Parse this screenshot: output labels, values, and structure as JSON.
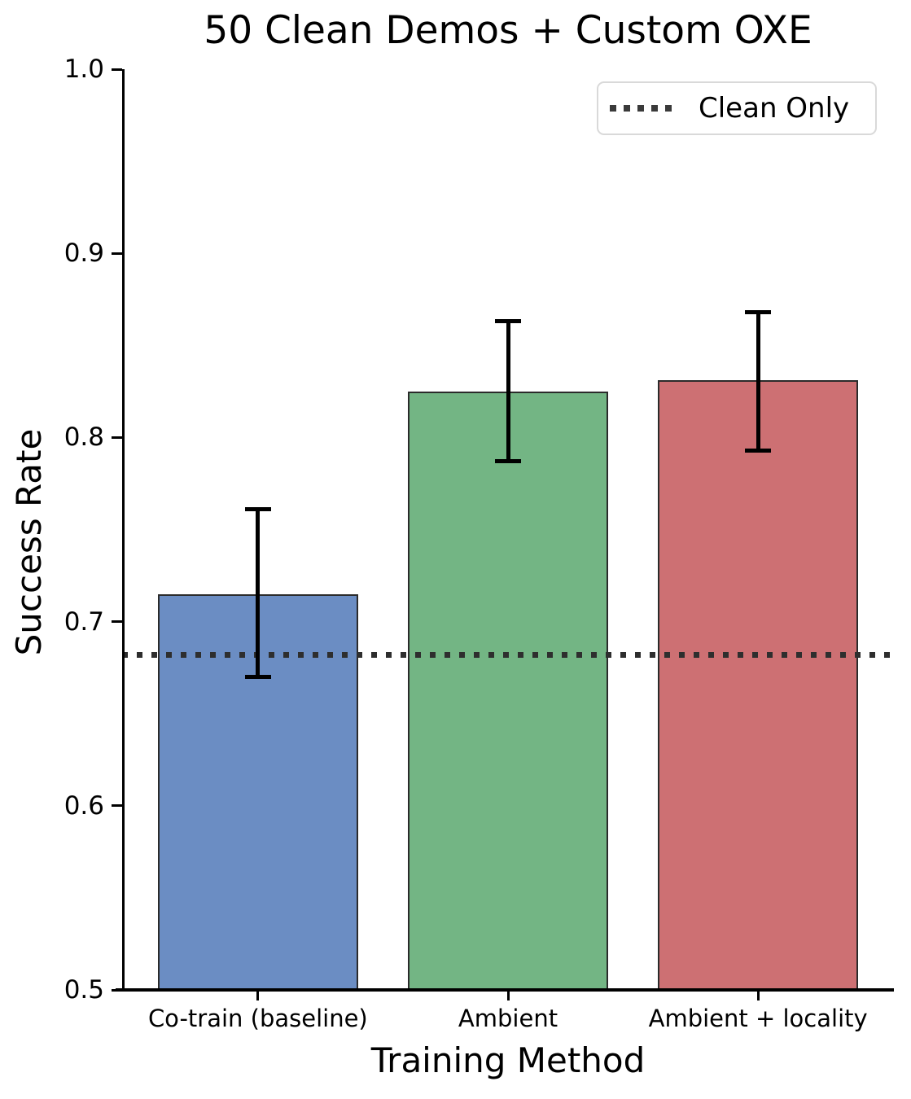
{
  "chart_data": {
    "type": "bar",
    "title": "50 Clean Demos + Custom OXE",
    "xlabel": "Training Method",
    "ylabel": "Success Rate",
    "ylim": [
      0.5,
      1.0
    ],
    "yticks": [
      0.5,
      0.6,
      0.7,
      0.8,
      0.9,
      1.0
    ],
    "grid": false,
    "categories": [
      "Co-train (baseline)",
      "Ambient",
      "Ambient + locality"
    ],
    "values": [
      0.715,
      0.825,
      0.831
    ],
    "error_low": [
      0.67,
      0.787,
      0.793
    ],
    "error_high": [
      0.761,
      0.863,
      0.868
    ],
    "bar_colors": [
      "#6b8dc3",
      "#73b584",
      "#cd7073"
    ],
    "bar_edge_color": "#2b2b2b",
    "baseline": {
      "label": "Clean Only",
      "value": 0.682,
      "color": "#2e2e2e",
      "style": "dotted"
    },
    "legend": {
      "position": "upper right",
      "entries": [
        {
          "label": "Clean Only",
          "swatch": "dotted-line",
          "color": "#3a3a3a"
        }
      ]
    }
  }
}
